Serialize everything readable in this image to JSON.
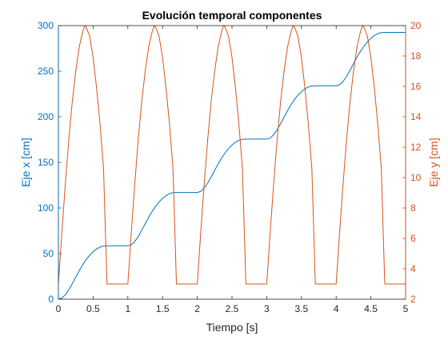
{
  "chart_data": {
    "type": "line",
    "title": "Evolución temporal componentes",
    "xlabel": "Tiempo [s]",
    "ylabel_left": "Eje x [cm]",
    "ylabel_right": "Eje y [cm]",
    "xlim": [
      0,
      5
    ],
    "ylim_left": [
      0,
      300
    ],
    "ylim_right": [
      2,
      20
    ],
    "xticks": [
      "0",
      "0.5",
      "1",
      "1.5",
      "2",
      "2.5",
      "3",
      "3.5",
      "4",
      "4.5",
      "5"
    ],
    "yticks_left": [
      "0",
      "50",
      "100",
      "150",
      "200",
      "250",
      "300"
    ],
    "yticks_right": [
      "2",
      "4",
      "6",
      "8",
      "10",
      "12",
      "14",
      "16",
      "18",
      "20"
    ],
    "grid": false,
    "colors": {
      "left": "#0072BD",
      "right": "#D95319",
      "axes": "#262626"
    },
    "series": [
      {
        "axis": "left",
        "color": "#0072BD",
        "x": [
          0,
          0.05,
          0.1,
          0.15,
          0.2,
          0.25,
          0.3,
          0.35,
          0.4,
          0.45,
          0.5,
          0.55,
          0.6,
          0.65,
          0.7,
          1.0,
          1.05,
          1.1,
          1.15,
          1.2,
          1.25,
          1.3,
          1.35,
          1.4,
          1.45,
          1.5,
          1.55,
          1.6,
          1.65,
          1.7,
          2.0,
          2.05,
          2.1,
          2.15,
          2.2,
          2.25,
          2.3,
          2.35,
          2.4,
          2.45,
          2.5,
          2.55,
          2.6,
          2.65,
          2.7,
          3.0,
          3.05,
          3.1,
          3.15,
          3.2,
          3.25,
          3.3,
          3.35,
          3.4,
          3.45,
          3.5,
          3.55,
          3.6,
          3.65,
          3.7,
          4.0,
          4.05,
          4.1,
          4.15,
          4.2,
          4.25,
          4.3,
          4.35,
          4.4,
          4.45,
          4.5,
          4.55,
          4.6,
          4.65,
          4.7,
          5.0
        ],
        "y": [
          0,
          1.2,
          4.8,
          10.3,
          17.0,
          24.2,
          31.3,
          37.8,
          43.4,
          48.2,
          52.1,
          55.1,
          57.2,
          58.3,
          58.5,
          58.5,
          59.7,
          63.3,
          68.8,
          75.5,
          82.7,
          89.8,
          96.3,
          101.9,
          106.7,
          110.6,
          113.6,
          115.7,
          116.8,
          117.0,
          117.0,
          118.2,
          121.8,
          127.3,
          134.0,
          141.2,
          148.3,
          154.8,
          160.4,
          165.2,
          169.1,
          172.1,
          174.2,
          175.3,
          175.5,
          175.5,
          176.7,
          180.3,
          185.8,
          192.5,
          199.7,
          206.8,
          213.3,
          218.9,
          223.7,
          227.6,
          230.6,
          232.7,
          233.8,
          234.0,
          234.0,
          235.2,
          238.8,
          244.3,
          251.0,
          258.2,
          265.3,
          271.8,
          277.4,
          282.2,
          286.1,
          289.1,
          291.2,
          292.3,
          292.5,
          292.5
        ]
      },
      {
        "axis": "right",
        "color": "#D95319",
        "x": [
          0,
          0.05,
          0.1,
          0.15,
          0.2,
          0.25,
          0.3,
          0.35,
          0.38,
          0.4,
          0.45,
          0.5,
          0.55,
          0.6,
          0.65,
          0.7,
          1.0,
          1.05,
          1.1,
          1.15,
          1.2,
          1.25,
          1.3,
          1.35,
          1.38,
          1.4,
          1.45,
          1.5,
          1.55,
          1.6,
          1.65,
          1.7,
          2.0,
          2.05,
          2.1,
          2.15,
          2.2,
          2.25,
          2.3,
          2.35,
          2.38,
          2.4,
          2.45,
          2.5,
          2.55,
          2.6,
          2.65,
          2.7,
          3.0,
          3.05,
          3.1,
          3.15,
          3.2,
          3.25,
          3.3,
          3.35,
          3.38,
          3.4,
          3.45,
          3.5,
          3.55,
          3.6,
          3.65,
          3.7,
          4.0,
          4.05,
          4.1,
          4.15,
          4.2,
          4.25,
          4.3,
          4.35,
          4.38,
          4.4,
          4.45,
          4.5,
          4.55,
          4.6,
          4.65,
          4.7,
          5.0
        ],
        "y": [
          3.0,
          6.4,
          9.6,
          12.5,
          15.0,
          17.0,
          18.6,
          19.6,
          20.0,
          19.9,
          19.3,
          17.9,
          15.9,
          13.5,
          10.6,
          3.0,
          3.0,
          6.4,
          9.6,
          12.5,
          15.0,
          17.0,
          18.6,
          19.6,
          20.0,
          19.9,
          19.3,
          17.9,
          15.9,
          13.5,
          10.6,
          3.0,
          3.0,
          6.4,
          9.6,
          12.5,
          15.0,
          17.0,
          18.6,
          19.6,
          20.0,
          19.9,
          19.3,
          17.9,
          15.9,
          13.5,
          10.6,
          3.0,
          3.0,
          6.4,
          9.6,
          12.5,
          15.0,
          17.0,
          18.6,
          19.6,
          20.0,
          19.9,
          19.3,
          17.9,
          15.9,
          13.5,
          10.6,
          3.0,
          3.0,
          6.4,
          9.6,
          12.5,
          15.0,
          17.0,
          18.6,
          19.6,
          20.0,
          19.9,
          19.3,
          17.9,
          15.9,
          13.5,
          10.6,
          3.0,
          3.0
        ]
      }
    ]
  }
}
